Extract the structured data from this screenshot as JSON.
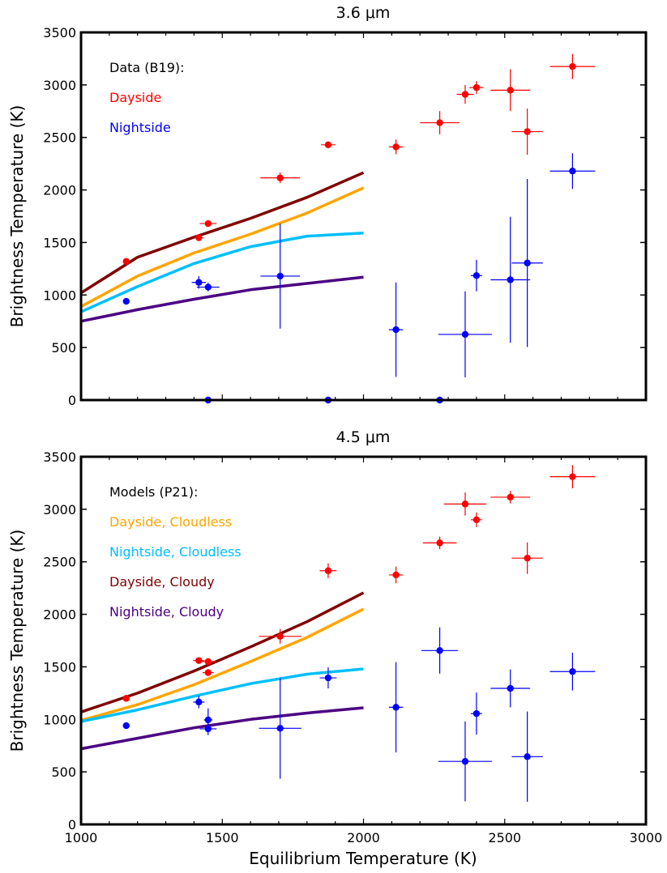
{
  "chart_data": [
    {
      "type": "scatter",
      "title": "3.6 μm",
      "xlabel": "",
      "ylabel": "Brightness Temperature (K)",
      "xlim": [
        1000,
        3000
      ],
      "ylim": [
        0,
        3500
      ],
      "xticks": [],
      "yticks": [
        0,
        500,
        1000,
        1500,
        2000,
        2500,
        3000,
        3500
      ],
      "legend": {
        "placement": "top-left",
        "header": "Data (B19):",
        "entries": [
          {
            "label": "Dayside",
            "color": "#ff0000"
          },
          {
            "label": "Nightside",
            "color": "#0000ff"
          }
        ]
      },
      "models": [
        {
          "name": "Dayside, Cloudy",
          "color": "#800000",
          "x": [
            1000,
            1200,
            1400,
            1600,
            1800,
            2000
          ],
          "y": [
            1020,
            1360,
            1550,
            1730,
            1930,
            2165
          ]
        },
        {
          "name": "Dayside, Cloudless",
          "color": "#ffa500",
          "x": [
            1000,
            1200,
            1400,
            1600,
            1800,
            2000
          ],
          "y": [
            890,
            1180,
            1400,
            1580,
            1780,
            2020
          ]
        },
        {
          "name": "Nightside, Cloudless",
          "color": "#00bfff",
          "x": [
            1000,
            1200,
            1400,
            1600,
            1800,
            2000
          ],
          "y": [
            840,
            1080,
            1300,
            1460,
            1560,
            1590
          ]
        },
        {
          "name": "Nightside, Cloudy",
          "color": "#4b0082",
          "x": [
            1000,
            1200,
            1400,
            1600,
            1800,
            2000
          ],
          "y": [
            750,
            860,
            960,
            1050,
            1110,
            1170
          ]
        }
      ],
      "series": [
        {
          "name": "Dayside",
          "color": "#ff0000",
          "points": [
            {
              "x": 1160,
              "y": 1320,
              "xerr": 0,
              "yerr": 0
            },
            {
              "x": 1417,
              "y": 1545,
              "xerr": 15,
              "yerr": 25
            },
            {
              "x": 1450,
              "y": 1680,
              "xerr": 30,
              "yerr": 20
            },
            {
              "x": 1705,
              "y": 2115,
              "xerr": 70,
              "yerr": 50
            },
            {
              "x": 1875,
              "y": 2430,
              "xerr": 25,
              "yerr": 30
            },
            {
              "x": 2115,
              "y": 2410,
              "xerr": 25,
              "yerr": 70
            },
            {
              "x": 2270,
              "y": 2640,
              "xerr": 70,
              "yerr": 110
            },
            {
              "x": 2360,
              "y": 2910,
              "xerr": 30,
              "yerr": 90
            },
            {
              "x": 2400,
              "y": 2975,
              "xerr": 25,
              "yerr": 60
            },
            {
              "x": 2520,
              "y": 2950,
              "xerr": 70,
              "yerr": 200
            },
            {
              "x": 2580,
              "y": 2555,
              "xerr": 55,
              "yerr": 220
            },
            {
              "x": 2740,
              "y": 3175,
              "xerr": 80,
              "yerr": 120
            }
          ]
        },
        {
          "name": "Nightside",
          "color": "#0000ff",
          "points": [
            {
              "x": 1160,
              "y": 940,
              "xerr": 0,
              "yerr": 0
            },
            {
              "x": 1417,
              "y": 1120,
              "xerr": 25,
              "yerr": 60
            },
            {
              "x": 1450,
              "y": 1075,
              "xerr": 40,
              "yerr": 40
            },
            {
              "x": 1705,
              "y": 1180,
              "xerr": 70,
              "yerr": 500
            },
            {
              "x": 1450,
              "y": 0,
              "xerr": 0,
              "yerr": 0
            },
            {
              "x": 1875,
              "y": 0,
              "xerr": 0,
              "yerr": 0
            },
            {
              "x": 2115,
              "y": 670,
              "xerr": 25,
              "yerr": 450
            },
            {
              "x": 2270,
              "y": 0,
              "xerr": 65,
              "yerr": 0
            },
            {
              "x": 2360,
              "y": 625,
              "xerr": 95,
              "yerr": 410
            },
            {
              "x": 2400,
              "y": 1185,
              "xerr": 20,
              "yerr": 150
            },
            {
              "x": 2520,
              "y": 1145,
              "xerr": 70,
              "yerr": 600
            },
            {
              "x": 2580,
              "y": 1305,
              "xerr": 55,
              "yerr": 800
            },
            {
              "x": 2740,
              "y": 2180,
              "xerr": 80,
              "yerr": 170
            }
          ]
        }
      ]
    },
    {
      "type": "scatter",
      "title": "4.5 μm",
      "xlabel": "Equilibrium Temperature (K)",
      "ylabel": "Brightness Temperature (K)",
      "xlim": [
        1000,
        3000
      ],
      "ylim": [
        0,
        3500
      ],
      "xticks": [
        1000,
        1500,
        2000,
        2500,
        3000
      ],
      "yticks": [
        0,
        500,
        1000,
        1500,
        2000,
        2500,
        3000,
        3500
      ],
      "legend": {
        "placement": "top-left",
        "header": "Models (P21):",
        "entries": [
          {
            "label": "Dayside, Cloudless",
            "color": "#ffa500"
          },
          {
            "label": "Nightside, Cloudless",
            "color": "#00bfff"
          },
          {
            "label": "Dayside, Cloudy",
            "color": "#800000"
          },
          {
            "label": "Nightside, Cloudy",
            "color": "#4b0082"
          }
        ]
      },
      "models": [
        {
          "name": "Dayside, Cloudy",
          "color": "#800000",
          "x": [
            1000,
            1200,
            1400,
            1600,
            1800,
            2000
          ],
          "y": [
            1070,
            1250,
            1460,
            1690,
            1930,
            2205
          ]
        },
        {
          "name": "Dayside, Cloudless",
          "color": "#ffa500",
          "x": [
            1000,
            1200,
            1400,
            1600,
            1800,
            2000
          ],
          "y": [
            990,
            1140,
            1330,
            1550,
            1780,
            2050
          ]
        },
        {
          "name": "Nightside, Cloudless",
          "color": "#00bfff",
          "x": [
            1000,
            1200,
            1400,
            1600,
            1800,
            2000
          ],
          "y": [
            980,
            1090,
            1220,
            1340,
            1430,
            1480
          ]
        },
        {
          "name": "Nightside, Cloudy",
          "color": "#4b0082",
          "x": [
            1000,
            1200,
            1400,
            1600,
            1800,
            2000
          ],
          "y": [
            720,
            820,
            920,
            1000,
            1060,
            1110
          ]
        }
      ],
      "series": [
        {
          "name": "Dayside",
          "color": "#ff0000",
          "points": [
            {
              "x": 1160,
              "y": 1200,
              "xerr": 0,
              "yerr": 0
            },
            {
              "x": 1417,
              "y": 1560,
              "xerr": 20,
              "yerr": 20
            },
            {
              "x": 1450,
              "y": 1550,
              "xerr": 25,
              "yerr": 20
            },
            {
              "x": 1450,
              "y": 1445,
              "xerr": 20,
              "yerr": 20
            },
            {
              "x": 1705,
              "y": 1790,
              "xerr": 75,
              "yerr": 70
            },
            {
              "x": 1875,
              "y": 2415,
              "xerr": 30,
              "yerr": 70
            },
            {
              "x": 2115,
              "y": 2375,
              "xerr": 25,
              "yerr": 80
            },
            {
              "x": 2270,
              "y": 2680,
              "xerr": 60,
              "yerr": 60
            },
            {
              "x": 2360,
              "y": 3050,
              "xerr": 75,
              "yerr": 110
            },
            {
              "x": 2400,
              "y": 2900,
              "xerr": 20,
              "yerr": 70
            },
            {
              "x": 2520,
              "y": 3115,
              "xerr": 70,
              "yerr": 60
            },
            {
              "x": 2580,
              "y": 2535,
              "xerr": 55,
              "yerr": 150
            },
            {
              "x": 2740,
              "y": 3310,
              "xerr": 80,
              "yerr": 110
            }
          ]
        },
        {
          "name": "Nightside",
          "color": "#0000ff",
          "points": [
            {
              "x": 1160,
              "y": 940,
              "xerr": 0,
              "yerr": 0
            },
            {
              "x": 1417,
              "y": 1165,
              "xerr": 20,
              "yerr": 60
            },
            {
              "x": 1450,
              "y": 995,
              "xerr": 15,
              "yerr": 110
            },
            {
              "x": 1450,
              "y": 910,
              "xerr": 30,
              "yerr": 60
            },
            {
              "x": 1705,
              "y": 915,
              "xerr": 75,
              "yerr": 480
            },
            {
              "x": 1875,
              "y": 1395,
              "xerr": 30,
              "yerr": 100
            },
            {
              "x": 2115,
              "y": 1115,
              "xerr": 25,
              "yerr": 430
            },
            {
              "x": 2270,
              "y": 1655,
              "xerr": 65,
              "yerr": 220
            },
            {
              "x": 2360,
              "y": 600,
              "xerr": 95,
              "yerr": 380
            },
            {
              "x": 2400,
              "y": 1055,
              "xerr": 20,
              "yerr": 200
            },
            {
              "x": 2520,
              "y": 1295,
              "xerr": 70,
              "yerr": 180
            },
            {
              "x": 2580,
              "y": 645,
              "xerr": 55,
              "yerr": 430
            },
            {
              "x": 2740,
              "y": 1455,
              "xerr": 80,
              "yerr": 180
            }
          ]
        }
      ]
    }
  ]
}
